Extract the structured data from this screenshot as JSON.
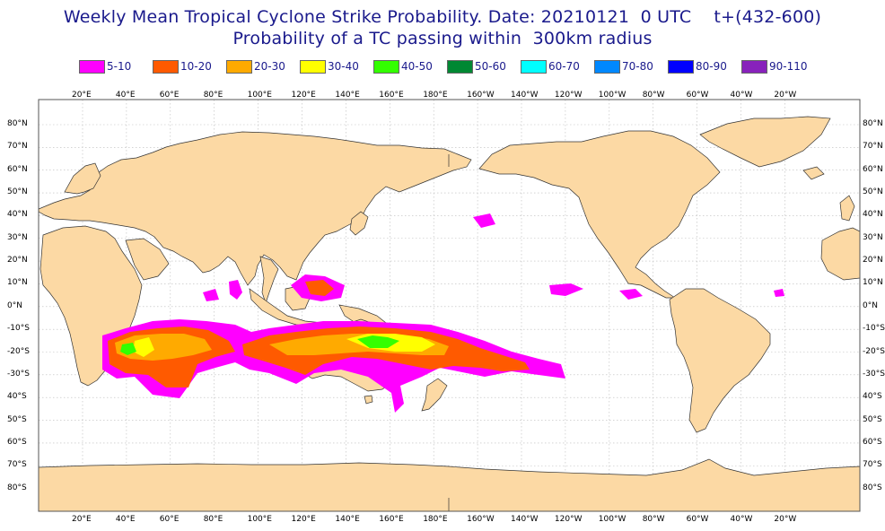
{
  "title": {
    "line1": "Weekly Mean Tropical Cyclone Strike Probability. Date: 20210121  0 UTC    t+(432-600)",
    "line2": "Probability of a TC passing within  300km radius"
  },
  "legend": [
    {
      "label": "5-10",
      "color": "#ff00ff"
    },
    {
      "label": "10-20",
      "color": "#ff5a00"
    },
    {
      "label": "20-30",
      "color": "#ffaa00"
    },
    {
      "label": "30-40",
      "color": "#ffff00"
    },
    {
      "label": "40-50",
      "color": "#33ff00"
    },
    {
      "label": "50-60",
      "color": "#008833"
    },
    {
      "label": "60-70",
      "color": "#00ffff"
    },
    {
      "label": "70-80",
      "color": "#0088ff"
    },
    {
      "label": "80-90",
      "color": "#0000ff"
    },
    {
      "label": "90-110",
      "color": "#8822bb"
    }
  ],
  "map": {
    "land_color": "#fcd9a4",
    "ocean_color": "#ffffff",
    "lon_labels": [
      "20°E",
      "40°E",
      "60°E",
      "80°E",
      "100°E",
      "120°E",
      "140°E",
      "160°E",
      "180°E",
      "160°W",
      "140°W",
      "120°W",
      "100°W",
      "80°W",
      "60°W",
      "40°W",
      "20°W"
    ],
    "lat_labels": [
      "80°N",
      "70°N",
      "60°N",
      "50°N",
      "40°N",
      "30°N",
      "20°N",
      "10°N",
      "0°N",
      "-10°S",
      "-20°S",
      "-30°S",
      "40°S",
      "50°S",
      "60°S",
      "70°S",
      "80°S"
    ]
  }
}
